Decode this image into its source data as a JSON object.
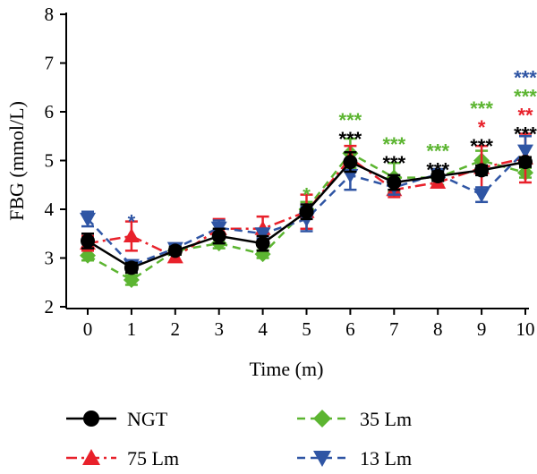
{
  "chart_data": {
    "type": "line",
    "xlabel": "Time (m)",
    "ylabel": "FBG (mmol/L)",
    "xlim": [
      0,
      10
    ],
    "ylim": [
      2,
      8
    ],
    "x": [
      0,
      1,
      2,
      3,
      4,
      5,
      6,
      7,
      8,
      9,
      10
    ],
    "x_ticks": [
      "0",
      "1",
      "2",
      "3",
      "4",
      "5",
      "6",
      "7",
      "8",
      "9",
      "10"
    ],
    "y_ticks": [
      "2",
      "3",
      "4",
      "5",
      "6",
      "7",
      "8"
    ],
    "series": [
      {
        "name": "NGT",
        "color": "#000000",
        "marker": "circle",
        "dash": "solid",
        "values": [
          3.35,
          2.8,
          3.15,
          3.45,
          3.3,
          3.95,
          4.97,
          4.55,
          4.68,
          4.8,
          4.97
        ],
        "errors": [
          0.15,
          0.1,
          0.08,
          0.15,
          0.15,
          0.15,
          0.2,
          0.15,
          0.1,
          0.1,
          0.1
        ]
      },
      {
        "name": "35 Lm",
        "color": "#5cb531",
        "marker": "diamond",
        "dash": "dashed",
        "values": [
          3.05,
          2.55,
          3.15,
          3.3,
          3.08,
          4.0,
          5.15,
          4.65,
          4.65,
          5.0,
          4.75
        ],
        "errors": [
          0.1,
          0.1,
          0.08,
          0.1,
          0.08,
          0.15,
          0.3,
          0.3,
          0.15,
          0.2,
          0.1
        ]
      },
      {
        "name": "75 Lm",
        "color": "#e8212b",
        "marker": "triangle-up",
        "dash": "dashdot",
        "values": [
          3.3,
          3.45,
          3.02,
          3.6,
          3.6,
          3.95,
          5.05,
          4.4,
          4.55,
          4.85,
          5.05
        ],
        "errors": [
          0.15,
          0.3,
          0.1,
          0.2,
          0.25,
          0.35,
          0.25,
          0.15,
          0.1,
          0.45,
          0.5
        ]
      },
      {
        "name": "13 Lm",
        "color": "#2f55a4",
        "marker": "triangle-down",
        "dash": "dashed",
        "values": [
          3.8,
          2.85,
          3.2,
          3.62,
          3.5,
          3.8,
          4.7,
          4.45,
          4.72,
          4.3,
          5.2
        ],
        "errors": [
          0.15,
          0.1,
          0.08,
          0.15,
          0.1,
          0.25,
          0.3,
          0.15,
          0.1,
          0.15,
          0.3
        ]
      }
    ],
    "annotations": [
      {
        "x": 1,
        "text": "*",
        "color": "#2f55a4"
      },
      {
        "x": 5,
        "text": "*",
        "color": "#5cb531"
      },
      {
        "x": 6,
        "text": "***",
        "color": "#5cb531"
      },
      {
        "x": 6,
        "text": "***",
        "color": "#000000"
      },
      {
        "x": 7,
        "text": "***",
        "color": "#5cb531"
      },
      {
        "x": 7,
        "text": "***",
        "color": "#000000"
      },
      {
        "x": 8,
        "text": "***",
        "color": "#5cb531"
      },
      {
        "x": 8,
        "text": "***",
        "color": "#000000"
      },
      {
        "x": 9,
        "text": "***",
        "color": "#5cb531"
      },
      {
        "x": 9,
        "text": "*",
        "color": "#e8212b"
      },
      {
        "x": 9,
        "text": "***",
        "color": "#000000"
      },
      {
        "x": 10,
        "text": "***",
        "color": "#2f55a4"
      },
      {
        "x": 10,
        "text": "***",
        "color": "#5cb531"
      },
      {
        "x": 10,
        "text": "**",
        "color": "#e8212b"
      },
      {
        "x": 10,
        "text": "***",
        "color": "#000000"
      }
    ],
    "legend": {
      "placement": "bottom",
      "columns": 2,
      "order": [
        "NGT",
        "35 Lm",
        "75 Lm",
        "13 Lm"
      ]
    },
    "grid": false
  }
}
